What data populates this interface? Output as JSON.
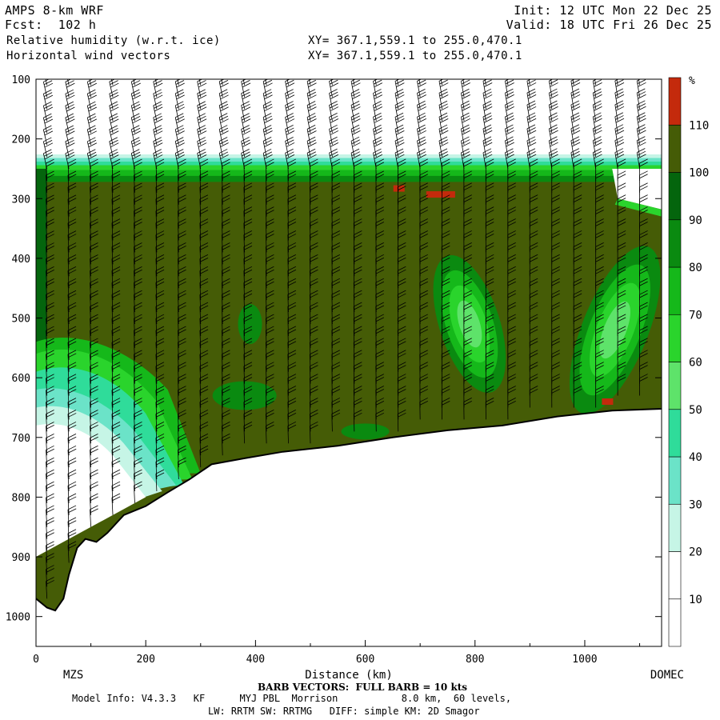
{
  "header": {
    "model": "AMPS 8-km WRF",
    "fcst": "Fcst:  102 h",
    "field1": "Relative humidity (w.r.t. ice)",
    "field2": "Horizontal wind vectors",
    "xy1": "XY= 367.1,559.1 to 255.0,470.1",
    "xy2": "XY= 367.1,559.1 to 255.0,470.1",
    "init": "Init: 12 UTC Mon 22 Dec 25",
    "valid": "Valid: 18 UTC Fri 26 Dec 25"
  },
  "footer": {
    "barb": "BARB VECTORS:  FULL BARB = 10 kts",
    "model_info": "Model Info: V4.3.3   KF      MYJ PBL  Morrison           8.0 km,  60 levels,",
    "schemes": "LW: RRTM SW: RRTMG   DIFF: simple KM: 2D Smagor"
  },
  "chart_data": {
    "type": "heatmap",
    "title": "Relative humidity (w.r.t. ice)",
    "xlabel": "Distance (km)",
    "ylabel": "",
    "x_range": [
      0,
      1140
    ],
    "y_range": [
      1050,
      100
    ],
    "x_ticks": [
      0,
      200,
      400,
      600,
      800,
      1000
    ],
    "y_ticks": [
      100,
      200,
      300,
      400,
      500,
      600,
      700,
      800,
      900,
      1000
    ],
    "endpoints": {
      "left": "MZS",
      "right": "DOMEC"
    },
    "colorbar": {
      "unit": "%",
      "ticks": [
        10,
        20,
        30,
        40,
        50,
        60,
        70,
        80,
        90,
        100,
        110
      ],
      "colors": [
        "#ffffff",
        "#ffffff",
        "#c6f5e6",
        "#6be3c8",
        "#2fdc9a",
        "#5ee36a",
        "#2ad42c",
        "#15b81a",
        "#0a8a10",
        "#04650d",
        "#455c06",
        "#c42a0c"
      ]
    },
    "terrain_surface_hPa": [
      [
        0,
        970
      ],
      [
        20,
        985
      ],
      [
        35,
        990
      ],
      [
        50,
        970
      ],
      [
        60,
        930
      ],
      [
        75,
        885
      ],
      [
        90,
        870
      ],
      [
        110,
        875
      ],
      [
        130,
        860
      ],
      [
        160,
        830
      ],
      [
        200,
        815
      ],
      [
        240,
        792
      ],
      [
        280,
        770
      ],
      [
        320,
        745
      ],
      [
        380,
        735
      ],
      [
        450,
        724
      ],
      [
        550,
        714
      ],
      [
        650,
        700
      ],
      [
        750,
        688
      ],
      [
        850,
        680
      ],
      [
        950,
        665
      ],
      [
        1050,
        655
      ],
      [
        1140,
        652
      ]
    ],
    "regions": [
      {
        "name": "moist layer (saturated)",
        "rh": ">100",
        "top_hPa": 240
      },
      {
        "name": "dry layer aloft",
        "rh": "<30",
        "bottom_hPa": 220
      },
      {
        "name": "dry pocket near MZS",
        "rh": "<30",
        "x_km": [
          0,
          240
        ],
        "hPa": [
          620,
          900
        ]
      },
      {
        "name": "moist slot 1",
        "rh": "70-80",
        "x_km": [
          730,
          850
        ],
        "hPa": [
          400,
          620
        ]
      },
      {
        "name": "moist slot 2",
        "rh": "70-80",
        "x_km": [
          980,
          1120
        ],
        "hPa": [
          380,
          650
        ]
      },
      {
        "name": "supersaturation patches",
        "rh": ">110",
        "points": [
          [
            660,
            283
          ],
          [
            720,
            293
          ],
          [
            1040,
            640
          ]
        ]
      }
    ],
    "wind_barbs": {
      "columns_km_step": 40,
      "levels_hPa_step": 20,
      "full_barb_kts": 10
    }
  }
}
